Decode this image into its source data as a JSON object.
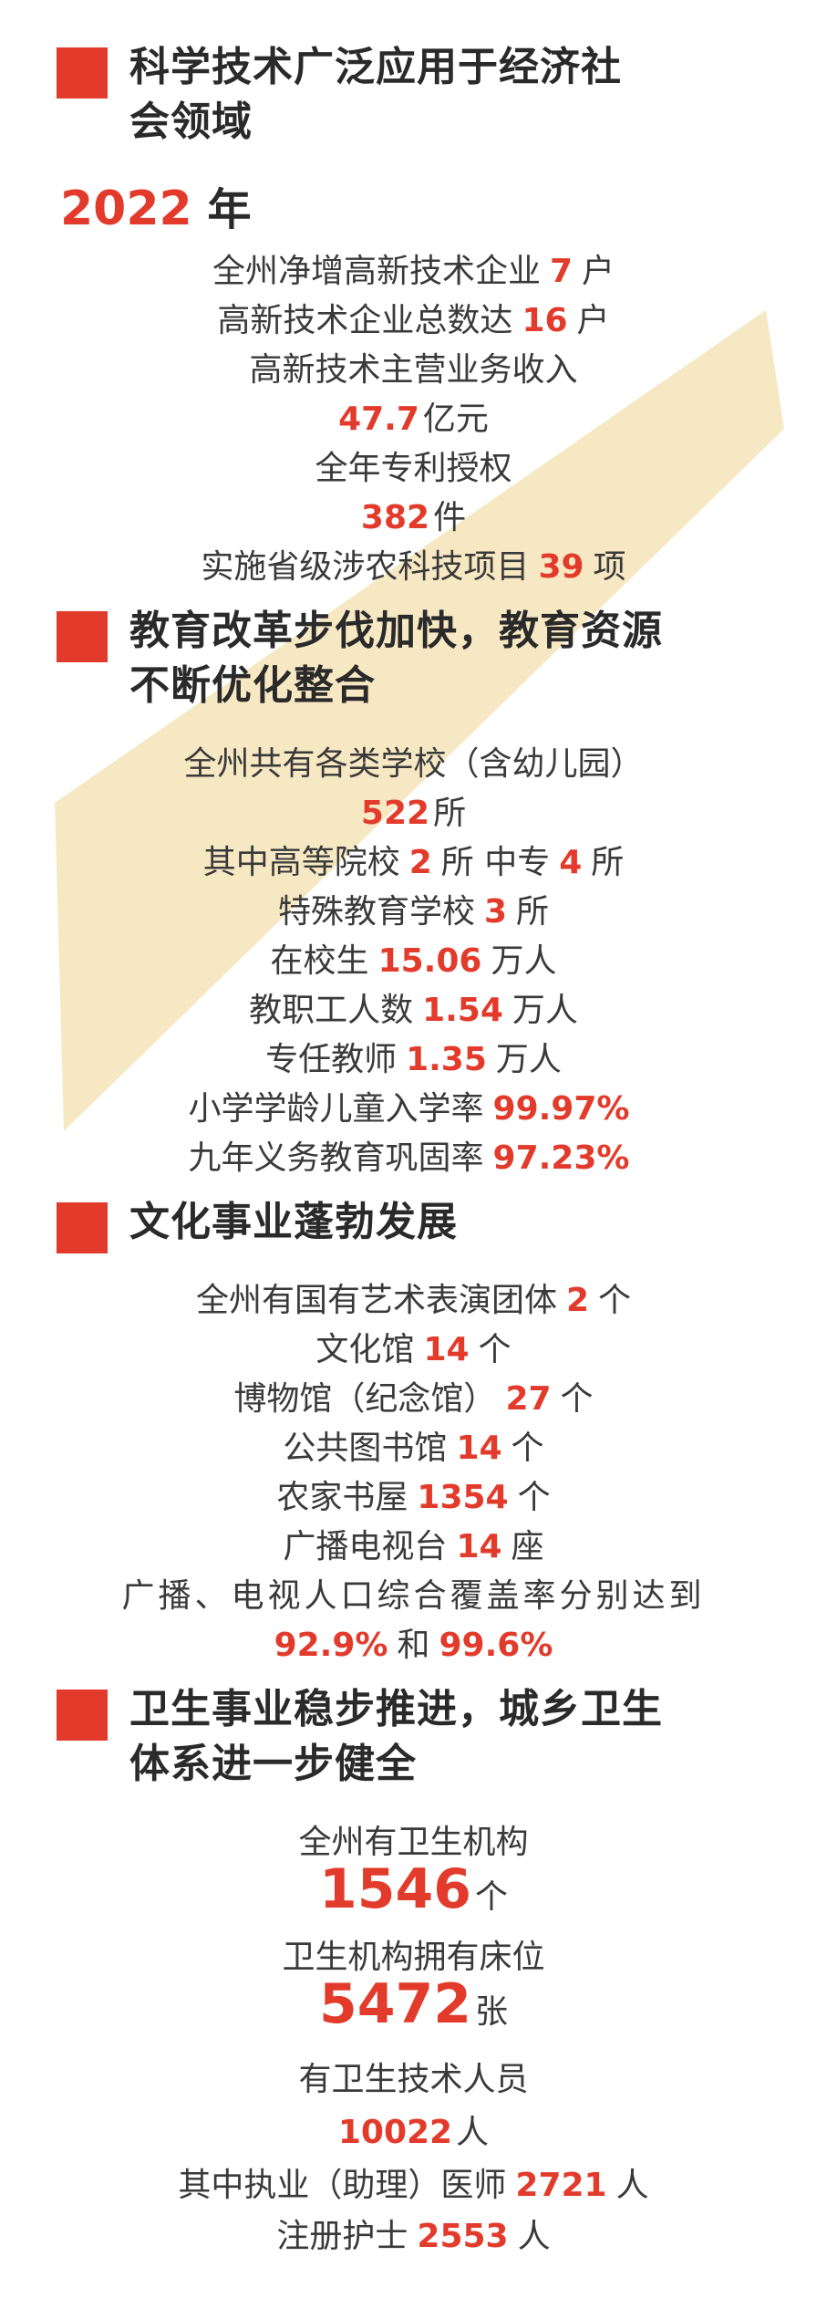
{
  "s1": {
    "title_line1": "科学技术广泛应用于经济社",
    "title_line2": "会领域",
    "year_num": "2022",
    "year_unit": "年",
    "lines": [
      {
        "pre": "全州净增高新技术企业",
        "num": "7",
        "suf": "户"
      },
      {
        "pre": "高新技术企业总数达",
        "num": "16",
        "suf": "户"
      },
      {
        "pre": "高新技术主营业务收入",
        "num": "",
        "suf": ""
      },
      {
        "pre": "",
        "num": "47.7",
        "suf": "亿元"
      },
      {
        "pre": "全年专利授权",
        "num": "",
        "suf": ""
      },
      {
        "pre": "",
        "num": "382",
        "suf": "件"
      },
      {
        "pre": "实施省级涉农科技项目",
        "num": "39",
        "suf": "项"
      }
    ]
  },
  "s2": {
    "title_line1": "教育改革步伐加快，教育资源",
    "title_line2": "不断优化整合",
    "lines": [
      {
        "pre": "全州共有各类学校（含幼儿园）",
        "num": "",
        "suf": ""
      },
      {
        "pre": "",
        "num": "522",
        "suf": "所"
      },
      {
        "pre": "其中高等院校",
        "num": "2",
        "mid": "所 中专",
        "num2": "4",
        "suf": "所"
      },
      {
        "pre": "特殊教育学校",
        "num": "3",
        "suf": "所"
      },
      {
        "pre": "在校生",
        "num": "15.06",
        "suf": "万人"
      },
      {
        "pre": "教职工人数",
        "num": "1.54",
        "suf": "万人"
      },
      {
        "pre": "专任教师",
        "num": "1.35",
        "suf": "万人"
      },
      {
        "pre": "小学学龄儿童入学率",
        "num": "99.97%",
        "suf": ""
      },
      {
        "pre": "九年义务教育巩固率",
        "num": "97.23%",
        "suf": ""
      }
    ]
  },
  "s3": {
    "title_line1": "文化事业蓬勃发展",
    "lines": [
      {
        "pre": "全州有国有艺术表演团体",
        "num": "2",
        "suf": "个"
      },
      {
        "pre": "文化馆",
        "num": "14",
        "suf": "个"
      },
      {
        "pre": "博物馆（纪念馆）",
        "num": "27",
        "suf": "个"
      },
      {
        "pre": "公共图书馆",
        "num": "14",
        "suf": "个"
      },
      {
        "pre": "农家书屋",
        "num": "1354",
        "suf": "个"
      },
      {
        "pre": "广播电视台",
        "num": "14",
        "suf": "座"
      },
      {
        "pre": "广播、电视人口综合覆盖率分别达到",
        "num": "",
        "suf": ""
      },
      {
        "pre": "",
        "num": "92.9%",
        "mid": "和",
        "num2": "99.6%",
        "suf": ""
      }
    ]
  },
  "s4": {
    "title_line1": "卫生事业稳步推进，城乡卫生",
    "title_line2": "体系进一步健全",
    "lines": [
      {
        "pre": "全州有卫生机构",
        "num": "",
        "suf": ""
      },
      {
        "pre": "",
        "num": "1546",
        "suf": "个"
      },
      {
        "pre": "卫生机构拥有床位",
        "num": "",
        "suf": ""
      },
      {
        "pre": "",
        "num": "5472",
        "suf": "张"
      },
      {
        "pre": "有卫生技术人员",
        "num": "",
        "suf": ""
      },
      {
        "pre": "",
        "num": "10022",
        "suf": "人"
      },
      {
        "pre": "其中执业（助理）医师",
        "num": "2721",
        "suf": "人"
      },
      {
        "pre": "注册护士",
        "num": "2553",
        "suf": "人"
      }
    ]
  },
  "colors": {
    "accent": "#e33b2b",
    "arrow": "#f7e8c4",
    "text": "#3a3a3a",
    "heading": "#2a2a2a"
  }
}
